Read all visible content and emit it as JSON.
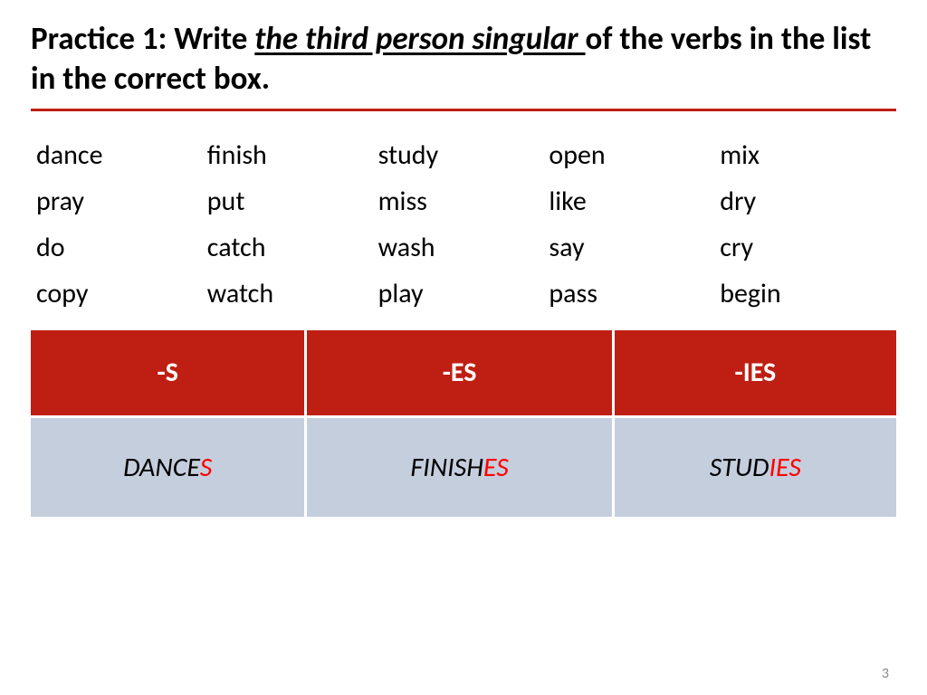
{
  "title": {
    "prefix": "Practice 1: Write ",
    "emphasis": "the third person singular ",
    "suffix": "of the verbs in the list in the correct box."
  },
  "verbs": [
    [
      "dance",
      "finish",
      "study",
      "open",
      "mix"
    ],
    [
      "pray",
      "put",
      "miss",
      "like",
      "dry"
    ],
    [
      "do",
      "catch",
      "wash",
      "say",
      "cry"
    ],
    [
      "copy",
      "watch",
      "play",
      "pass",
      "begin"
    ]
  ],
  "table": {
    "headers": [
      "-S",
      "-ES",
      "-IES"
    ],
    "examples": [
      {
        "base": "DANCE",
        "suffix": "S"
      },
      {
        "base": "FINISH",
        "suffix": "ES"
      },
      {
        "base": "STUD",
        "suffix": "IES"
      }
    ],
    "header_bg": "#bf1e12",
    "header_fg": "#ffffff",
    "cell_bg": "#c5cedc",
    "suffix_color": "#ff0000"
  },
  "page_number": "3"
}
